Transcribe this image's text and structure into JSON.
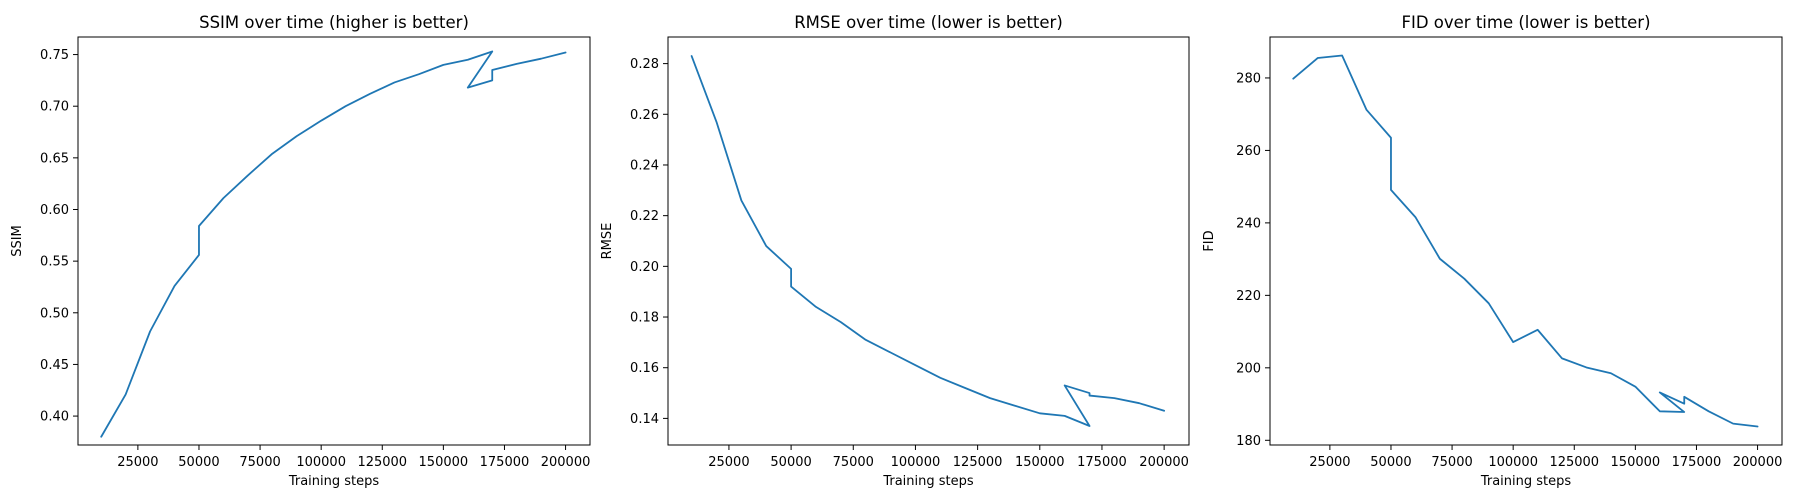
{
  "colors": {
    "series": "#1f77b4"
  },
  "chart_data": [
    {
      "type": "line",
      "title": "SSIM over time (higher is better)",
      "xlabel": "Training steps",
      "ylabel": "SSIM",
      "xlim": [
        500,
        210000
      ],
      "ylim": [
        0.372,
        0.767
      ],
      "xticks": [
        25000,
        50000,
        75000,
        100000,
        125000,
        150000,
        175000,
        200000
      ],
      "yticks": [
        0.4,
        0.45,
        0.5,
        0.55,
        0.6,
        0.65,
        0.7,
        0.75
      ],
      "xtick_labels": [
        "25000",
        "50000",
        "75000",
        "100000",
        "125000",
        "150000",
        "175000",
        "200000"
      ],
      "ytick_labels": [
        "0.40",
        "0.45",
        "0.50",
        "0.55",
        "0.60",
        "0.65",
        "0.70",
        "0.75"
      ],
      "grid": false,
      "series": [
        {
          "x": [
            10000,
            20000,
            30000,
            40000,
            50000,
            50000,
            60000,
            70000,
            80000,
            90000,
            100000,
            110000,
            120000,
            130000,
            140000,
            150000,
            160000,
            170000,
            160000,
            170000,
            170000,
            180000,
            190000,
            200000
          ],
          "y": [
            0.38,
            0.421,
            0.482,
            0.526,
            0.556,
            0.584,
            0.611,
            0.633,
            0.654,
            0.671,
            0.686,
            0.7,
            0.712,
            0.723,
            0.731,
            0.74,
            0.745,
            0.753,
            0.718,
            0.725,
            0.735,
            0.741,
            0.746,
            0.752
          ]
        }
      ]
    },
    {
      "type": "line",
      "title": "RMSE over time (lower is better)",
      "xlabel": "Training steps",
      "ylabel": "RMSE",
      "xlim": [
        500,
        210000
      ],
      "ylim": [
        0.1295,
        0.2905
      ],
      "xticks": [
        25000,
        50000,
        75000,
        100000,
        125000,
        150000,
        175000,
        200000
      ],
      "yticks": [
        0.14,
        0.16,
        0.18,
        0.2,
        0.22,
        0.24,
        0.26,
        0.28
      ],
      "xtick_labels": [
        "25000",
        "50000",
        "75000",
        "100000",
        "125000",
        "150000",
        "175000",
        "200000"
      ],
      "ytick_labels": [
        "0.14",
        "0.16",
        "0.18",
        "0.20",
        "0.22",
        "0.24",
        "0.26",
        "0.28"
      ],
      "grid": false,
      "series": [
        {
          "x": [
            10000,
            20000,
            30000,
            40000,
            50000,
            50000,
            60000,
            70000,
            80000,
            90000,
            100000,
            110000,
            120000,
            130000,
            140000,
            150000,
            160000,
            170000,
            160000,
            170000,
            170000,
            180000,
            190000,
            200000
          ],
          "y": [
            0.283,
            0.257,
            0.226,
            0.208,
            0.199,
            0.192,
            0.184,
            0.178,
            0.171,
            0.166,
            0.161,
            0.156,
            0.152,
            0.148,
            0.145,
            0.142,
            0.141,
            0.137,
            0.153,
            0.15,
            0.149,
            0.148,
            0.146,
            0.143
          ]
        }
      ]
    },
    {
      "type": "line",
      "title": "FID over time (lower is better)",
      "xlabel": "Training steps",
      "ylabel": "FID",
      "xlim": [
        500,
        210000
      ],
      "ylim": [
        178.7,
        291.3
      ],
      "xticks": [
        25000,
        50000,
        75000,
        100000,
        125000,
        150000,
        175000,
        200000
      ],
      "yticks": [
        180,
        200,
        220,
        240,
        260,
        280
      ],
      "xtick_labels": [
        "25000",
        "50000",
        "75000",
        "100000",
        "125000",
        "150000",
        "175000",
        "200000"
      ],
      "ytick_labels": [
        "180",
        "200",
        "220",
        "240",
        "260",
        "280"
      ],
      "grid": false,
      "series": [
        {
          "x": [
            10000,
            20000,
            30000,
            40000,
            50000,
            50000,
            60000,
            70000,
            80000,
            90000,
            100000,
            110000,
            120000,
            130000,
            140000,
            150000,
            160000,
            170000,
            160000,
            170000,
            170000,
            180000,
            190000,
            200000
          ],
          "y": [
            279.8,
            285.5,
            286.2,
            271.2,
            263.5,
            249.1,
            241.6,
            230.1,
            224.6,
            217.8,
            207.1,
            210.5,
            202.6,
            200.1,
            198.5,
            194.8,
            188.0,
            187.8,
            193.2,
            190.1,
            192.0,
            188.0,
            184.6,
            183.8
          ]
        }
      ]
    }
  ]
}
